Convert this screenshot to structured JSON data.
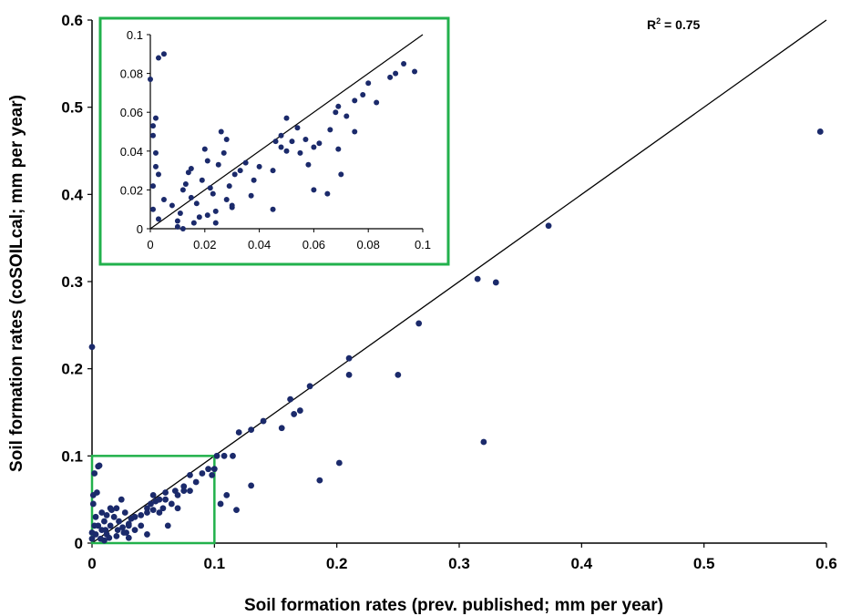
{
  "chart_data": [
    {
      "type": "scatter",
      "title": "",
      "xlabel": "Soil formation rates (prev. published; mm per year)",
      "ylabel": "Soil formation rates (coSOILcal; mm per year)",
      "xlim": [
        0,
        0.6
      ],
      "ylim": [
        0,
        0.6
      ],
      "x_ticks": [
        "0",
        "0.1",
        "0.2",
        "0.3",
        "0.4",
        "0.5",
        "0.6"
      ],
      "y_ticks": [
        "0",
        "0.1",
        "0.2",
        "0.3",
        "0.4",
        "0.5",
        "0.6"
      ],
      "annotation": {
        "prefix": "R",
        "superscript": "2",
        "suffix": " = 0.75"
      },
      "reference_line": {
        "x": [
          0,
          0.6
        ],
        "y": [
          0,
          0.6
        ]
      },
      "highlight_box": {
        "x": [
          0,
          0.1
        ],
        "y": [
          0,
          0.1
        ],
        "color": "#22b14c"
      },
      "grid": false,
      "marker_color": "#1b2a6b",
      "points": [
        [
          0.0,
          0.225
        ],
        [
          0.0,
          0.005
        ],
        [
          0.0,
          0.012
        ],
        [
          0.001,
          0.045
        ],
        [
          0.001,
          0.055
        ],
        [
          0.002,
          0.08
        ],
        [
          0.005,
          0.088
        ],
        [
          0.003,
          0.03
        ],
        [
          0.002,
          0.02
        ],
        [
          0.003,
          0.01
        ],
        [
          0.004,
          0.058
        ],
        [
          0.006,
          0.089
        ],
        [
          0.008,
          0.015
        ],
        [
          0.01,
          0.003
        ],
        [
          0.012,
          0.01
        ],
        [
          0.015,
          0.02
        ],
        [
          0.018,
          0.03
        ],
        [
          0.02,
          0.04
        ],
        [
          0.022,
          0.025
        ],
        [
          0.025,
          0.018
        ],
        [
          0.028,
          0.012
        ],
        [
          0.03,
          0.022
        ],
        [
          0.032,
          0.028
        ],
        [
          0.035,
          0.03
        ],
        [
          0.04,
          0.032
        ],
        [
          0.045,
          0.035
        ],
        [
          0.048,
          0.045
        ],
        [
          0.05,
          0.038
        ],
        [
          0.052,
          0.048
        ],
        [
          0.055,
          0.05
        ],
        [
          0.058,
          0.04
        ],
        [
          0.06,
          0.058
        ],
        [
          0.065,
          0.045
        ],
        [
          0.068,
          0.06
        ],
        [
          0.07,
          0.055
        ],
        [
          0.075,
          0.065
        ],
        [
          0.08,
          0.078
        ],
        [
          0.085,
          0.07
        ],
        [
          0.09,
          0.08
        ],
        [
          0.095,
          0.085
        ],
        [
          0.1,
          0.085
        ],
        [
          0.098,
          0.078
        ],
        [
          0.012,
          0.032
        ],
        [
          0.016,
          0.038
        ],
        [
          0.024,
          0.05
        ],
        [
          0.03,
          0.006
        ],
        [
          0.026,
          0.012
        ],
        [
          0.014,
          0.006
        ],
        [
          0.035,
          0.015
        ],
        [
          0.045,
          0.01
        ],
        [
          0.062,
          0.02
        ],
        [
          0.07,
          0.04
        ],
        [
          0.011,
          0.015
        ],
        [
          0.021,
          0.015
        ],
        [
          0.01,
          0.025
        ],
        [
          0.02,
          0.008
        ],
        [
          0.027,
          0.035
        ],
        [
          0.005,
          0.02
        ],
        [
          0.007,
          0.005
        ],
        [
          0.04,
          0.02
        ],
        [
          0.015,
          0.04
        ],
        [
          0.055,
          0.035
        ],
        [
          0.05,
          0.055
        ],
        [
          0.075,
          0.06
        ],
        [
          0.008,
          0.035
        ],
        [
          0.03,
          0.02
        ],
        [
          0.045,
          0.04
        ],
        [
          0.06,
          0.05
        ],
        [
          0.08,
          0.06
        ],
        [
          0.102,
          0.1
        ],
        [
          0.108,
          0.1
        ],
        [
          0.115,
          0.1
        ],
        [
          0.12,
          0.127
        ],
        [
          0.13,
          0.13
        ],
        [
          0.14,
          0.14
        ],
        [
          0.155,
          0.132
        ],
        [
          0.162,
          0.165
        ],
        [
          0.165,
          0.148
        ],
        [
          0.17,
          0.152
        ],
        [
          0.178,
          0.18
        ],
        [
          0.21,
          0.212
        ],
        [
          0.21,
          0.193
        ],
        [
          0.25,
          0.193
        ],
        [
          0.267,
          0.252
        ],
        [
          0.315,
          0.303
        ],
        [
          0.33,
          0.299
        ],
        [
          0.373,
          0.364
        ],
        [
          0.595,
          0.472
        ],
        [
          0.32,
          0.116
        ],
        [
          0.202,
          0.092
        ],
        [
          0.186,
          0.072
        ],
        [
          0.13,
          0.066
        ],
        [
          0.118,
          0.038
        ],
        [
          0.11,
          0.055
        ],
        [
          0.105,
          0.045
        ]
      ]
    },
    {
      "type": "scatter",
      "title": "",
      "xlabel": "",
      "ylabel": "",
      "xlim": [
        0,
        0.1
      ],
      "ylim": [
        0,
        0.1
      ],
      "x_ticks": [
        "0",
        "0.02",
        "0.04",
        "0.06",
        "0.08",
        "0.1"
      ],
      "y_ticks": [
        "0",
        "0.02",
        "0.04",
        "0.06",
        "0.08",
        "0.1"
      ],
      "reference_line": {
        "x": [
          0,
          0.1
        ],
        "y": [
          0,
          0.1
        ]
      },
      "frame_color": "#22b14c",
      "grid": false,
      "marker_color": "#1b2a6b",
      "points": [
        [
          0.0,
          0.077
        ],
        [
          0.001,
          0.053
        ],
        [
          0.001,
          0.048
        ],
        [
          0.001,
          0.022
        ],
        [
          0.001,
          0.01
        ],
        [
          0.002,
          0.057
        ],
        [
          0.002,
          0.039
        ],
        [
          0.002,
          0.032
        ],
        [
          0.003,
          0.088
        ],
        [
          0.005,
          0.09
        ],
        [
          0.003,
          0.028
        ],
        [
          0.003,
          0.005
        ],
        [
          0.008,
          0.012
        ],
        [
          0.01,
          0.004
        ],
        [
          0.01,
          0.001
        ],
        [
          0.011,
          0.008
        ],
        [
          0.012,
          0.02
        ],
        [
          0.013,
          0.023
        ],
        [
          0.014,
          0.029
        ],
        [
          0.015,
          0.031
        ],
        [
          0.017,
          0.013
        ],
        [
          0.018,
          0.006
        ],
        [
          0.019,
          0.025
        ],
        [
          0.02,
          0.041
        ],
        [
          0.021,
          0.035
        ],
        [
          0.022,
          0.021
        ],
        [
          0.023,
          0.018
        ],
        [
          0.024,
          0.009
        ],
        [
          0.025,
          0.033
        ],
        [
          0.026,
          0.05
        ],
        [
          0.027,
          0.039
        ],
        [
          0.028,
          0.015
        ],
        [
          0.029,
          0.022
        ],
        [
          0.03,
          0.011
        ],
        [
          0.031,
          0.028
        ],
        [
          0.033,
          0.03
        ],
        [
          0.035,
          0.034
        ],
        [
          0.037,
          0.017
        ],
        [
          0.038,
          0.025
        ],
        [
          0.04,
          0.032
        ],
        [
          0.045,
          0.03
        ],
        [
          0.046,
          0.045
        ],
        [
          0.048,
          0.042
        ],
        [
          0.05,
          0.057
        ],
        [
          0.052,
          0.045
        ],
        [
          0.054,
          0.052
        ],
        [
          0.055,
          0.039
        ],
        [
          0.057,
          0.046
        ],
        [
          0.058,
          0.033
        ],
        [
          0.06,
          0.042
        ],
        [
          0.062,
          0.044
        ],
        [
          0.065,
          0.018
        ],
        [
          0.066,
          0.051
        ],
        [
          0.068,
          0.06
        ],
        [
          0.069,
          0.063
        ],
        [
          0.07,
          0.028
        ],
        [
          0.072,
          0.058
        ],
        [
          0.075,
          0.066
        ],
        [
          0.078,
          0.069
        ],
        [
          0.08,
          0.075
        ],
        [
          0.083,
          0.065
        ],
        [
          0.088,
          0.078
        ],
        [
          0.09,
          0.08
        ],
        [
          0.093,
          0.085
        ],
        [
          0.097,
          0.081
        ],
        [
          0.045,
          0.01
        ],
        [
          0.06,
          0.02
        ],
        [
          0.069,
          0.041
        ],
        [
          0.075,
          0.05
        ],
        [
          0.012,
          0.0
        ],
        [
          0.016,
          0.003
        ],
        [
          0.024,
          0.003
        ],
        [
          0.03,
          0.012
        ],
        [
          0.021,
          0.007
        ],
        [
          0.015,
          0.016
        ],
        [
          0.005,
          0.015
        ],
        [
          0.028,
          0.046
        ],
        [
          0.048,
          0.048
        ],
        [
          0.05,
          0.04
        ]
      ]
    }
  ]
}
